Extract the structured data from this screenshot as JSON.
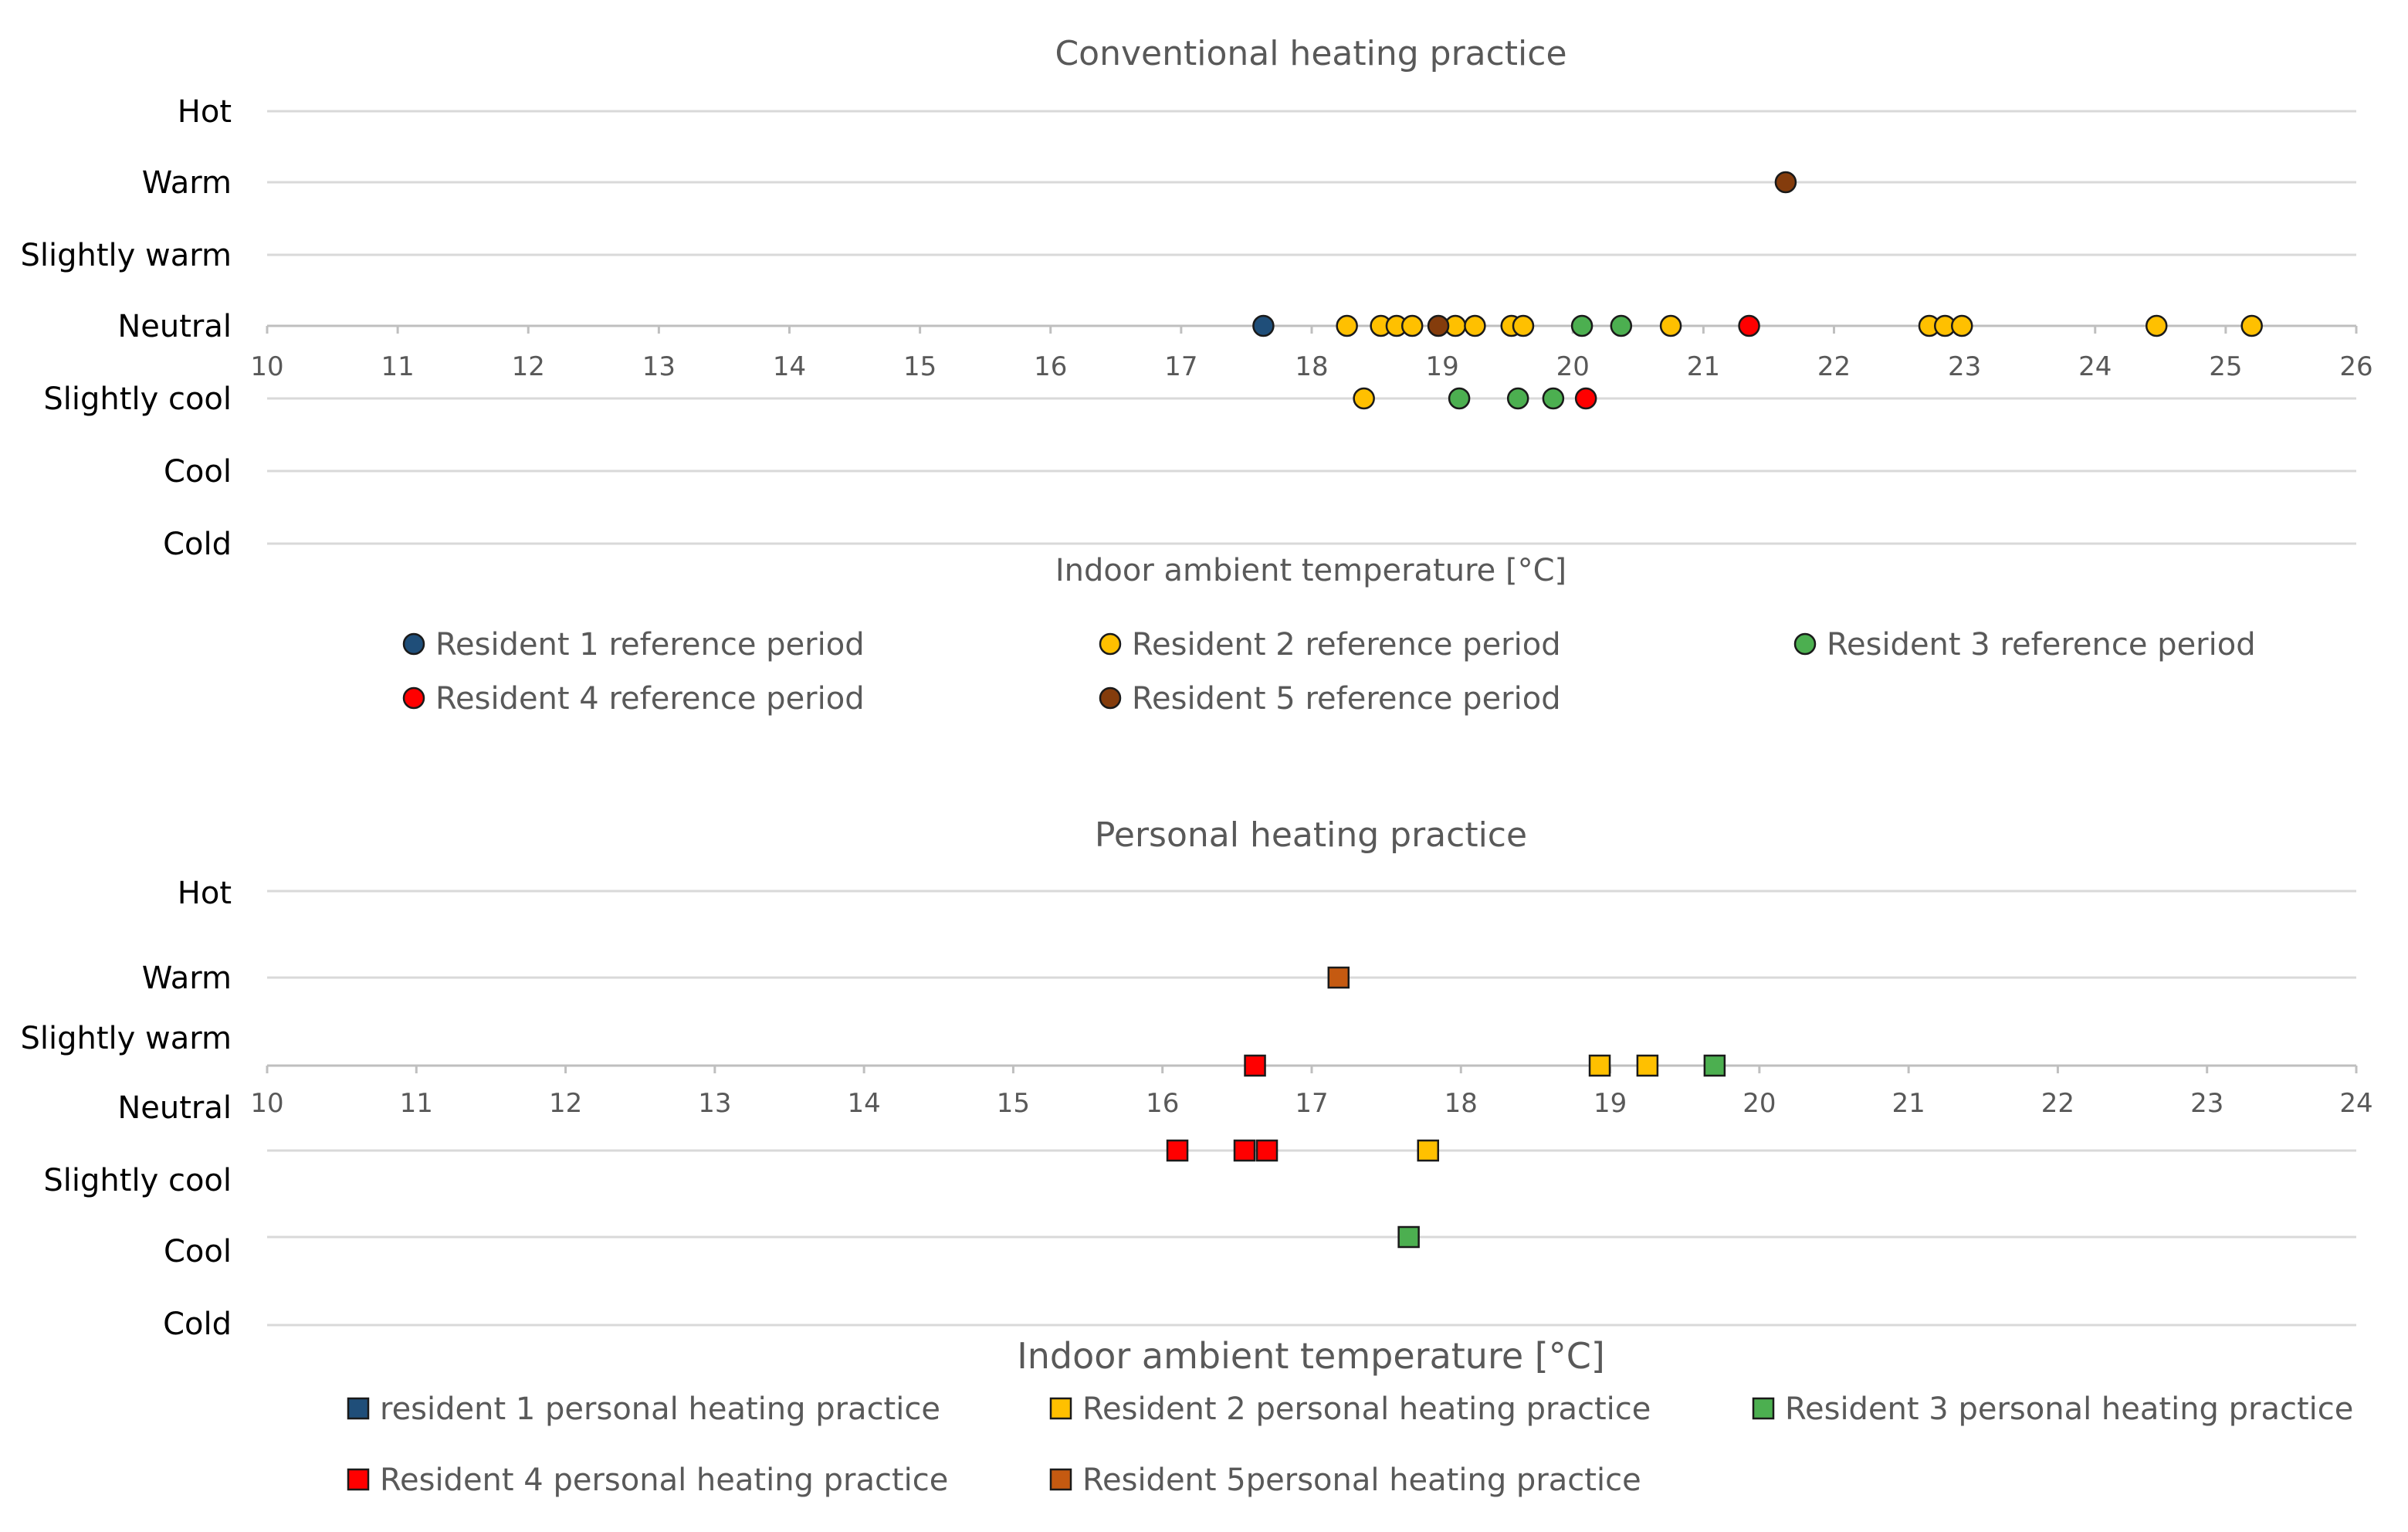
{
  "chart_data": [
    {
      "type": "scatter",
      "title": "Conventional heating practice",
      "xlabel": "Indoor ambient temperature [°C]",
      "ylabel": "",
      "xlim": [
        10,
        26
      ],
      "xticks": [
        "10",
        "11",
        "12",
        "13",
        "14",
        "15",
        "16",
        "17",
        "18",
        "19",
        "20",
        "21",
        "22",
        "23",
        "24",
        "25",
        "26"
      ],
      "y_categories": [
        "Hot",
        "Warm",
        "Slightly warm",
        "Neutral",
        "Slightly cool",
        "Cool",
        "Cold"
      ],
      "marker": "circle",
      "legend_position": "bottom",
      "grid": true,
      "series": [
        {
          "name": "Resident 1 reference period",
          "color": "#1f4e79",
          "points": [
            {
              "x": 17.63,
              "y": "Neutral"
            }
          ]
        },
        {
          "name": "Resident 2 reference period",
          "color": "#ffc000",
          "points": [
            {
              "x": 18.27,
              "y": "Neutral"
            },
            {
              "x": 18.53,
              "y": "Neutral"
            },
            {
              "x": 18.65,
              "y": "Neutral"
            },
            {
              "x": 18.77,
              "y": "Neutral"
            },
            {
              "x": 19.1,
              "y": "Neutral"
            },
            {
              "x": 19.25,
              "y": "Neutral"
            },
            {
              "x": 19.53,
              "y": "Neutral"
            },
            {
              "x": 19.62,
              "y": "Neutral"
            },
            {
              "x": 20.75,
              "y": "Neutral"
            },
            {
              "x": 22.73,
              "y": "Neutral"
            },
            {
              "x": 22.85,
              "y": "Neutral"
            },
            {
              "x": 22.98,
              "y": "Neutral"
            },
            {
              "x": 24.47,
              "y": "Neutral"
            },
            {
              "x": 25.2,
              "y": "Neutral"
            },
            {
              "x": 18.4,
              "y": "Slightly cool"
            }
          ]
        },
        {
          "name": "Resident 3 reference period",
          "color": "#4caf50",
          "points": [
            {
              "x": 20.07,
              "y": "Neutral"
            },
            {
              "x": 20.37,
              "y": "Neutral"
            },
            {
              "x": 19.13,
              "y": "Slightly cool"
            },
            {
              "x": 19.58,
              "y": "Slightly cool"
            },
            {
              "x": 19.85,
              "y": "Slightly cool"
            }
          ]
        },
        {
          "name": "Resident 4 reference period",
          "color": "#ff0000",
          "points": [
            {
              "x": 21.35,
              "y": "Neutral"
            },
            {
              "x": 20.1,
              "y": "Slightly cool"
            }
          ]
        },
        {
          "name": "Resident 5 reference period",
          "color": "#843c0c",
          "points": [
            {
              "x": 21.63,
              "y": "Warm"
            },
            {
              "x": 18.97,
              "y": "Neutral"
            }
          ]
        }
      ]
    },
    {
      "type": "scatter",
      "title": "Personal heating practice",
      "xlabel": "Indoor ambient temperature [°C]",
      "ylabel": "",
      "xlim": [
        10,
        24
      ],
      "xticks": [
        "10",
        "11",
        "12",
        "13",
        "14",
        "15",
        "16",
        "17",
        "18",
        "19",
        "20",
        "21",
        "22",
        "23",
        "24"
      ],
      "y_categories": [
        "Hot",
        "Warm",
        "Slightly warm",
        "Neutral",
        "Slightly cool",
        "Cool",
        "Cold"
      ],
      "marker": "square",
      "legend_position": "bottom",
      "grid": true,
      "series": [
        {
          "name": "resident 1 personal heating practice",
          "color": "#1f4e79",
          "points": []
        },
        {
          "name": "Resident 2 personal heating practice",
          "color": "#ffc000",
          "points": [
            {
              "x": 18.93,
              "y": "Slightly warm"
            },
            {
              "x": 19.25,
              "y": "Slightly warm"
            },
            {
              "x": 17.78,
              "y": "Slightly cool"
            }
          ]
        },
        {
          "name": "Resident 3 personal heating practice",
          "color": "#4caf50",
          "points": [
            {
              "x": 19.7,
              "y": "Slightly warm"
            },
            {
              "x": 17.65,
              "y": "Cool"
            }
          ]
        },
        {
          "name": "Resident 4 personal heating practice",
          "color": "#ff0000",
          "points": [
            {
              "x": 16.62,
              "y": "Slightly warm"
            },
            {
              "x": 16.1,
              "y": "Slightly cool"
            },
            {
              "x": 16.55,
              "y": "Slightly cool"
            },
            {
              "x": 16.7,
              "y": "Slightly cool"
            }
          ]
        },
        {
          "name": "Resident 5personal heating practice",
          "color": "#c55a11",
          "points": [
            {
              "x": 17.18,
              "y": "Warm"
            }
          ]
        }
      ]
    }
  ]
}
